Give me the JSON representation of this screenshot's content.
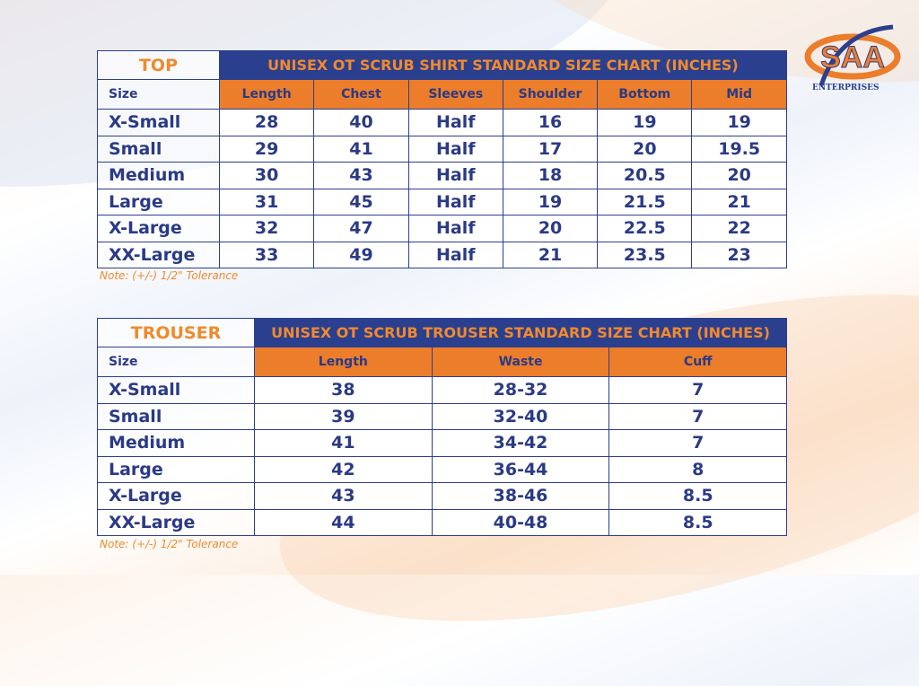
{
  "colors": {
    "navy": "#2b3f8f",
    "orange": "#ec7d2a"
  },
  "logo": {
    "text": "SAA",
    "subtitle": "ENTERPRISES"
  },
  "top": {
    "label": "TOP",
    "title": "UNISEX OT SCRUB SHIRT STANDARD SIZE CHART (INCHES)",
    "headers": [
      "Size",
      "Length",
      "Chest",
      "Sleeves",
      "Shoulder",
      "Bottom",
      "Mid"
    ],
    "rows": [
      [
        "X-Small",
        "28",
        "40",
        "Half",
        "16",
        "19",
        "19"
      ],
      [
        "Small",
        "29",
        "41",
        "Half",
        "17",
        "20",
        "19.5"
      ],
      [
        "Medium",
        "30",
        "43",
        "Half",
        "18",
        "20.5",
        "20"
      ],
      [
        "Large",
        "31",
        "45",
        "Half",
        "19",
        "21.5",
        "21"
      ],
      [
        "X-Large",
        "32",
        "47",
        "Half",
        "20",
        "22.5",
        "22"
      ],
      [
        "XX-Large",
        "33",
        "49",
        "Half",
        "21",
        "23.5",
        "23"
      ]
    ],
    "note": "Note: (+/-) 1/2\" Tolerance"
  },
  "trouser": {
    "label": "TROUSER",
    "title": "UNISEX OT SCRUB TROUSER STANDARD SIZE CHART (INCHES)",
    "headers": [
      "Size",
      "Length",
      "Waste",
      "Cuff"
    ],
    "rows": [
      [
        "X-Small",
        "38",
        "28-32",
        "7"
      ],
      [
        "Small",
        "39",
        "32-40",
        "7"
      ],
      [
        "Medium",
        "41",
        "34-42",
        "7"
      ],
      [
        "Large",
        "42",
        "36-44",
        "8"
      ],
      [
        "X-Large",
        "43",
        "38-46",
        "8.5"
      ],
      [
        "XX-Large",
        "44",
        "40-48",
        "8.5"
      ]
    ],
    "note": "Note: (+/-) 1/2\" Tolerance"
  }
}
